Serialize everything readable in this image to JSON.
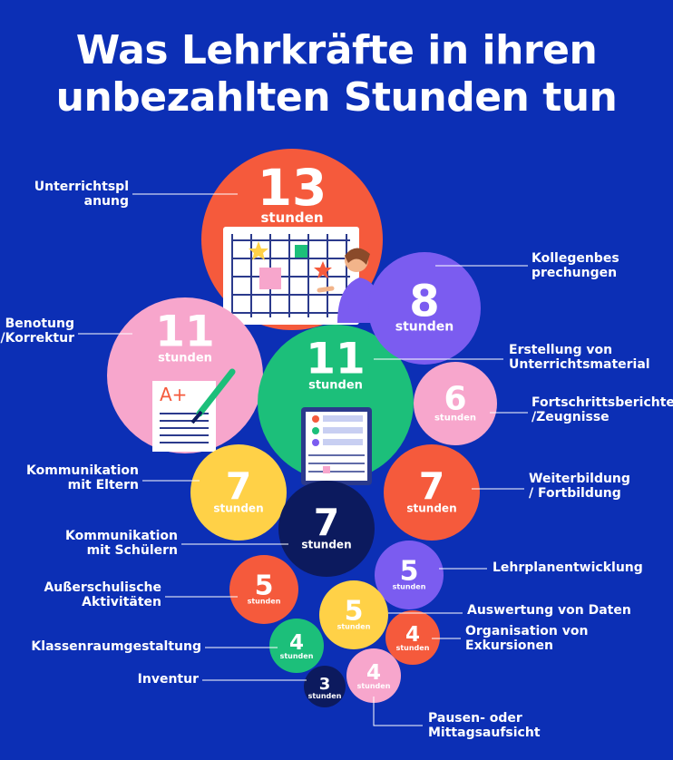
{
  "title": {
    "line1": "Was Lehrkräfte in ihren",
    "line2": "unbezahlten Stunden tun"
  },
  "chart_data": {
    "type": "bubble",
    "unit": "stunden",
    "categories": [
      {
        "label": [
          "Unterrichtspl",
          "anung"
        ],
        "value": 13,
        "color": "#f55a3c"
      },
      {
        "label": [
          "Benotung",
          "/Korrektur"
        ],
        "value": 11,
        "color": "#f7a6cc"
      },
      {
        "label": [
          "Erstellung von",
          "Unterrichtsmaterial"
        ],
        "value": 11,
        "color": "#1cbf7a"
      },
      {
        "label": [
          "Kollegenbes",
          "prechungen"
        ],
        "value": 8,
        "color": "#7b5cf0"
      },
      {
        "label": [
          "Kommunikation",
          "mit Eltern"
        ],
        "value": 7,
        "color": "#ffd147"
      },
      {
        "label": [
          "Kommunikation",
          "mit Schülern"
        ],
        "value": 7,
        "color": "#0c1a5e"
      },
      {
        "label": [
          "Weiterbildung",
          "/ Fortbildung"
        ],
        "value": 7,
        "color": "#f55a3c"
      },
      {
        "label": [
          "Fortschrittsberichte",
          "/Zeugnisse"
        ],
        "value": 6,
        "color": "#f7a6cc"
      },
      {
        "label": [
          "Lehrplanentwicklung"
        ],
        "value": 5,
        "color": "#7b5cf0"
      },
      {
        "label": [
          "Außerschulische",
          "Aktivitäten"
        ],
        "value": 5,
        "color": "#f55a3c"
      },
      {
        "label": [
          "Auswertung von Daten"
        ],
        "value": 5,
        "color": "#ffd147"
      },
      {
        "label": [
          "Organisation von",
          "Exkursionen"
        ],
        "value": 4,
        "color": "#f55a3c"
      },
      {
        "label": [
          "Klassenraumgestaltung"
        ],
        "value": 4,
        "color": "#1cbf7a"
      },
      {
        "label": [
          "Pausen- oder",
          "Mittagsaufsicht"
        ],
        "value": 4,
        "color": "#f7a6cc"
      },
      {
        "label": [
          "Inventur"
        ],
        "value": 3,
        "color": "#0c1a5e"
      }
    ]
  }
}
